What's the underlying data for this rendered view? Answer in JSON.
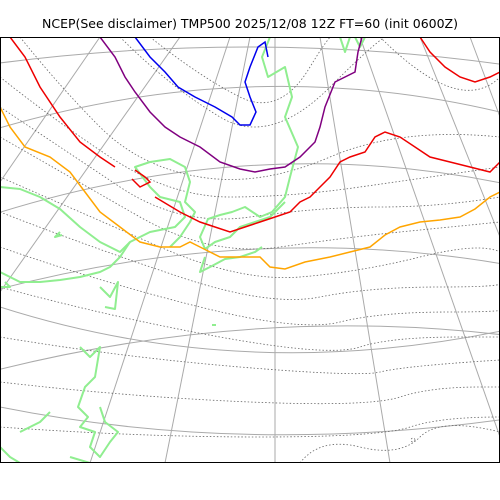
{
  "title": "NCEP(See disclaimer) TMP500 2025/12/08 12Z FT=60 (init 0600Z)",
  "colors": {
    "background": "#ffffff",
    "graticule": "#aaaaaa",
    "coastline": "#90ee90",
    "isotherm_dotted": "#666666",
    "isotherm_blue": "#0000ee",
    "isotherm_purple": "#800080",
    "isotherm_red": "#ee0000",
    "isotherm_orange": "#ffa500"
  }
}
